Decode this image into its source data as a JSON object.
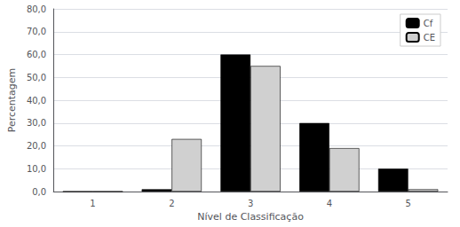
{
  "chart_data": {
    "type": "bar",
    "categories": [
      "1",
      "2",
      "3",
      "4",
      "5"
    ],
    "series": [
      {
        "name": "Cf",
        "color": "#000000",
        "values": [
          0,
          1,
          60,
          30,
          10
        ]
      },
      {
        "name": "CE",
        "color": "#d0d0d0",
        "values": [
          0,
          23,
          55,
          19,
          1
        ]
      }
    ],
    "xlabel": "Nível de Classificação",
    "ylabel": "Percentagem",
    "ylim": [
      0,
      80
    ],
    "yticks": [
      {
        "value": 0,
        "label": "0,0"
      },
      {
        "value": 10,
        "label": "10,0"
      },
      {
        "value": 20,
        "label": "20,0"
      },
      {
        "value": 30,
        "label": "30,0"
      },
      {
        "value": 40,
        "label": "40,0"
      },
      {
        "value": 50,
        "label": "50,0"
      },
      {
        "value": 60,
        "label": "60,0"
      },
      {
        "value": 70,
        "label": "70,0"
      },
      {
        "value": 80,
        "label": "80,0"
      }
    ],
    "grid": true,
    "legend": "upper right"
  }
}
